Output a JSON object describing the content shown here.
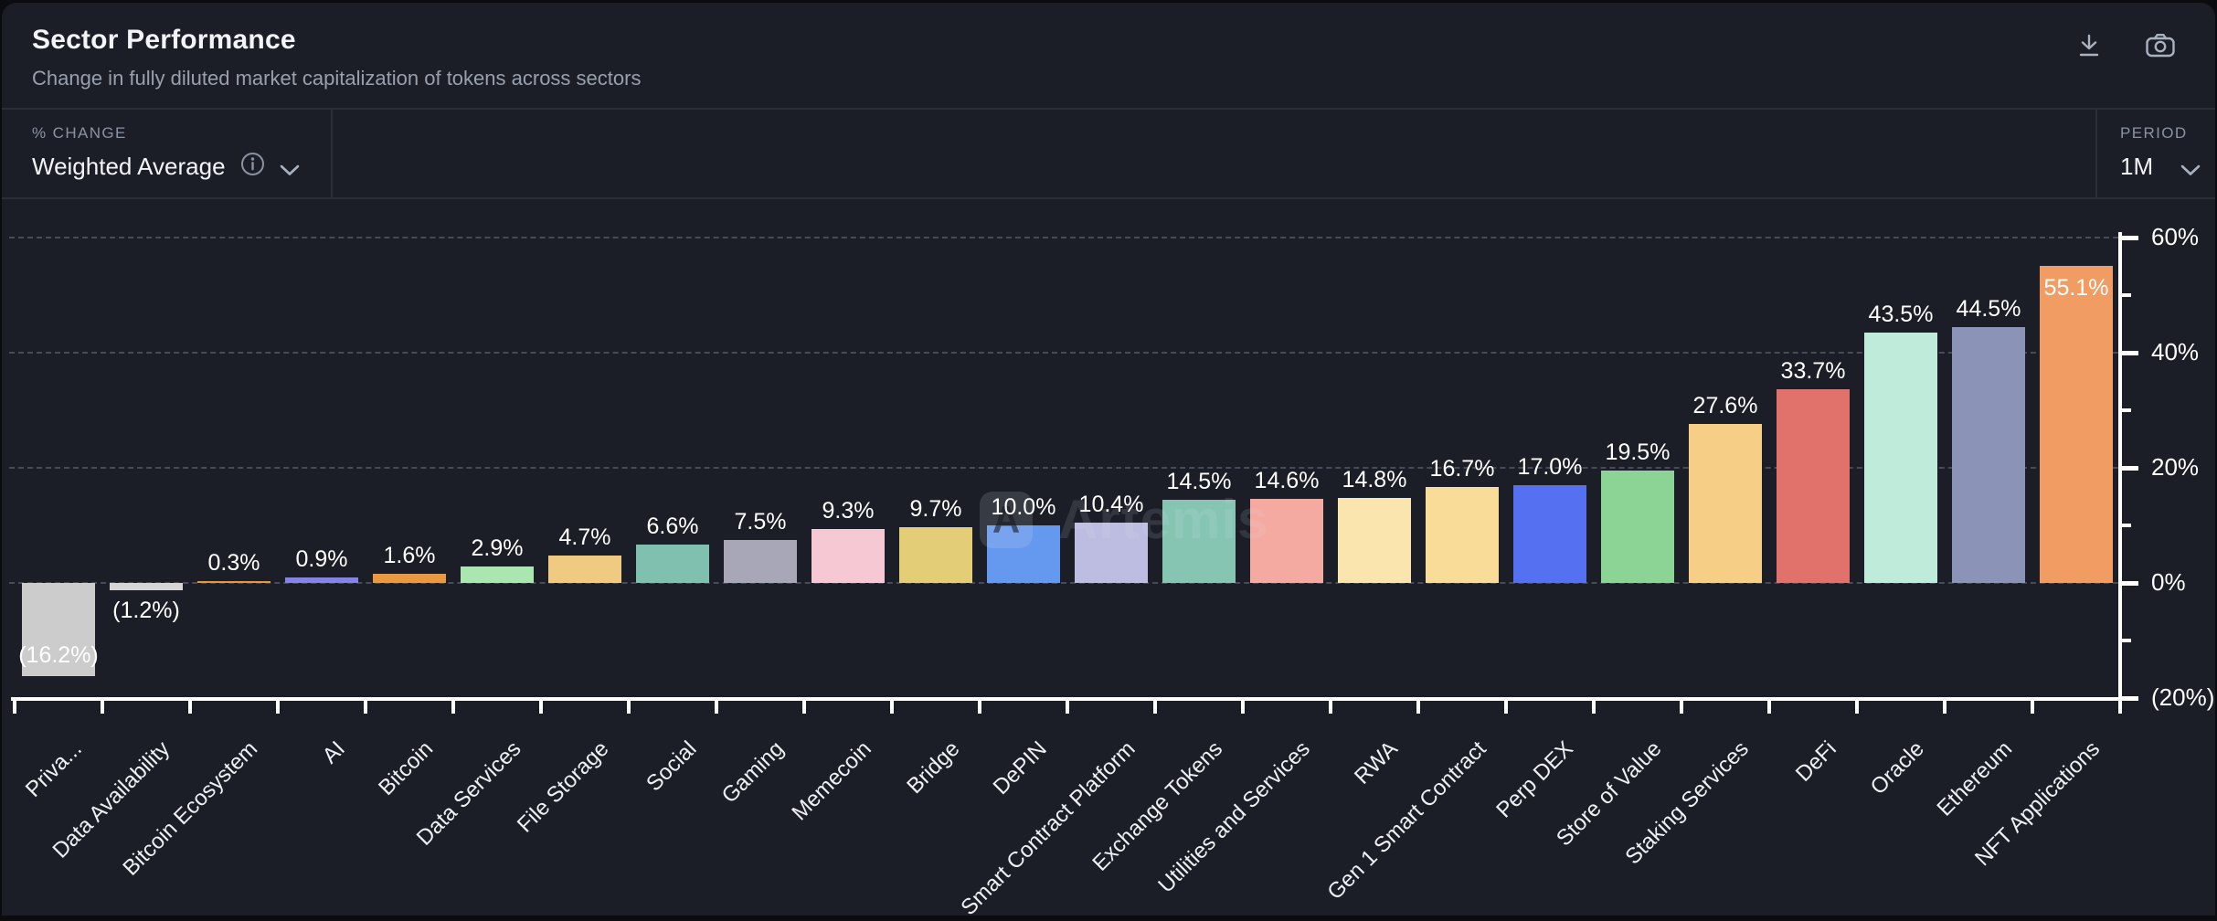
{
  "header": {
    "title": "Sector Performance",
    "subtitle": "Change in fully diluted market capitalization of tokens across sectors"
  },
  "controls": {
    "change_label": "% CHANGE",
    "change_value": "Weighted Average",
    "period_label": "PERIOD",
    "period_value": "1M"
  },
  "watermark": {
    "text": "Artemis",
    "logo_letter": "A"
  },
  "palette": {
    "page-bg": "#0b0c10",
    "card-bg": "#1b1e26",
    "border": "#2b2f3a",
    "grid": "#464b58",
    "axis": "#ffffff",
    "text-bright": "#f2f4f8",
    "text-muted": "#99a0ad"
  },
  "chart_data": {
    "type": "bar",
    "title": "Sector Performance",
    "ylabel": "% change",
    "ylim": [
      -20,
      62
    ],
    "grid": "horizontal dashed at 0, 20, 40, 60",
    "legend": "none",
    "y_axis_side": "right",
    "gridlines_pct": [
      60,
      40,
      20,
      0
    ],
    "y_major_ticks": [
      {
        "value": 60,
        "label": "60%"
      },
      {
        "value": 40,
        "label": "40%"
      },
      {
        "value": 20,
        "label": "20%"
      },
      {
        "value": 0,
        "label": "0%"
      },
      {
        "value": -20,
        "label": "(20%)"
      }
    ],
    "y_minor_ticks": [
      50,
      30,
      10,
      -10
    ],
    "bars": [
      {
        "category": "Priva...",
        "value": -16.2,
        "label": "(16.2%)",
        "color": "#CCCCCC",
        "label_position": "inside-bottom"
      },
      {
        "category": "Data Availability",
        "value": -1.2,
        "label": "(1.2%)",
        "color": "#D5D5D5",
        "label_position": "below"
      },
      {
        "category": "Bitcoin Ecosystem",
        "value": 0.3,
        "label": "0.3%",
        "color": "#E9953E",
        "label_position": "above"
      },
      {
        "category": "AI",
        "value": 0.9,
        "label": "0.9%",
        "color": "#8583E4",
        "label_position": "above"
      },
      {
        "category": "Bitcoin",
        "value": 1.6,
        "label": "1.6%",
        "color": "#E9993F",
        "label_position": "above"
      },
      {
        "category": "Data Services",
        "value": 2.9,
        "label": "2.9%",
        "color": "#AAE7B0",
        "label_position": "above"
      },
      {
        "category": "File Storage",
        "value": 4.7,
        "label": "4.7%",
        "color": "#EFCA80",
        "label_position": "above"
      },
      {
        "category": "Social",
        "value": 6.6,
        "label": "6.6%",
        "color": "#80C0AF",
        "label_position": "above"
      },
      {
        "category": "Gaming",
        "value": 7.5,
        "label": "7.5%",
        "color": "#A8A7B7",
        "label_position": "above"
      },
      {
        "category": "Memecoin",
        "value": 9.3,
        "label": "9.3%",
        "color": "#F6C8D3",
        "label_position": "above"
      },
      {
        "category": "Bridge",
        "value": 9.7,
        "label": "9.7%",
        "color": "#E3CD76",
        "label_position": "above"
      },
      {
        "category": "DePIN",
        "value": 10.0,
        "label": "10.0%",
        "color": "#6598EF",
        "label_position": "above"
      },
      {
        "category": "Smart Contract Platform",
        "value": 10.4,
        "label": "10.4%",
        "color": "#BDBDE1",
        "label_position": "above"
      },
      {
        "category": "Exchange Tokens",
        "value": 14.5,
        "label": "14.5%",
        "color": "#86C5B2",
        "label_position": "above"
      },
      {
        "category": "Utilities and Services",
        "value": 14.6,
        "label": "14.6%",
        "color": "#F4AAA1",
        "label_position": "above"
      },
      {
        "category": "RWA",
        "value": 14.8,
        "label": "14.8%",
        "color": "#FAE5AE",
        "label_position": "above"
      },
      {
        "category": "Gen 1 Smart Contract",
        "value": 16.7,
        "label": "16.7%",
        "color": "#F8DC98",
        "label_position": "above"
      },
      {
        "category": "Perp DEX",
        "value": 17.0,
        "label": "17.0%",
        "color": "#5571F2",
        "label_position": "above"
      },
      {
        "category": "Store of Value",
        "value": 19.5,
        "label": "19.5%",
        "color": "#8CD496",
        "label_position": "above"
      },
      {
        "category": "Staking Services",
        "value": 27.6,
        "label": "27.6%",
        "color": "#F6CE85",
        "label_position": "above"
      },
      {
        "category": "DeFi",
        "value": 33.7,
        "label": "33.7%",
        "color": "#E0716B",
        "label_position": "above"
      },
      {
        "category": "Oracle",
        "value": 43.5,
        "label": "43.5%",
        "color": "#BFECDA",
        "label_position": "above"
      },
      {
        "category": "Ethereum",
        "value": 44.5,
        "label": "44.5%",
        "color": "#8B93B6",
        "label_position": "above"
      },
      {
        "category": "NFT Applications",
        "value": 55.1,
        "label": "55.1%",
        "color": "#F09C62",
        "label_position": "inside-top"
      }
    ]
  }
}
